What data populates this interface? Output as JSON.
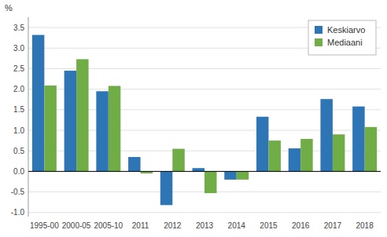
{
  "chart_data": {
    "type": "bar",
    "categories": [
      "1995-00",
      "2000-05",
      "2005-10",
      "2011",
      "2012",
      "2013",
      "2014",
      "2015",
      "2016",
      "2017",
      "2018"
    ],
    "series": [
      {
        "name": "Keskiarvo",
        "color": "#2E75B6",
        "values": [
          3.32,
          2.45,
          1.95,
          0.35,
          -0.82,
          0.08,
          -0.2,
          1.33,
          0.56,
          1.76,
          1.58
        ]
      },
      {
        "name": "Mediaani",
        "color": "#70AD47",
        "values": [
          2.09,
          2.73,
          2.08,
          -0.05,
          0.55,
          -0.53,
          -0.2,
          0.75,
          0.79,
          0.9,
          1.08
        ]
      }
    ],
    "y_label": "%",
    "ylim": [
      -1.1,
      3.75
    ],
    "yticks": [
      {
        "value": -1.0,
        "label": "-1.0"
      },
      -0.5,
      {
        "value": 0.0,
        "label": "0.0"
      },
      0.5,
      {
        "value": 1.0,
        "label": "1.0"
      },
      1.5,
      {
        "value": 2.0,
        "label": "2.0"
      },
      2.5,
      {
        "value": 3.0,
        "label": "3.0"
      },
      3.5
    ],
    "grid": true,
    "legend": "upper right"
  }
}
